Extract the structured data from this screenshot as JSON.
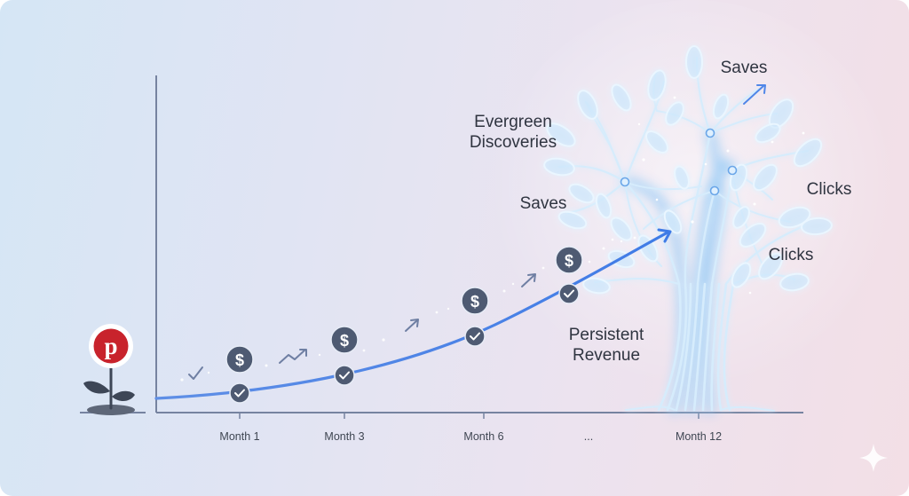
{
  "x_axis": {
    "ticks": [
      "Month 1",
      "Month 3",
      "Month 6",
      "...",
      "Month 12"
    ]
  },
  "milestones": [
    {
      "tick": "Month 1",
      "revenue_icon": "dollar-coin-icon",
      "status_icon": "check-icon"
    },
    {
      "tick": "Month 3",
      "revenue_icon": "dollar-coin-icon",
      "status_icon": "check-icon"
    },
    {
      "tick": "Month 6",
      "revenue_icon": "dollar-coin-icon",
      "status_icon": "check-icon"
    },
    {
      "tick": "...",
      "revenue_icon": "dollar-coin-icon",
      "status_icon": "check-icon"
    }
  ],
  "tree": {
    "labels": {
      "evergreen_line1": "Evergreen",
      "evergreen_line2": "Discoveries",
      "saves_top": "Saves",
      "saves_left": "Saves",
      "clicks_upper": "Clicks",
      "clicks_lower": "Clicks",
      "persistent_line1": "Persistent",
      "persistent_line2": "Revenue"
    }
  },
  "symbols": {
    "dollar": "$",
    "brand_letter": "p"
  },
  "icons": [
    "pinterest-logo-icon",
    "sprout-icon",
    "dollar-coin-icon",
    "check-icon",
    "trend-up-icon",
    "sparkle-icon"
  ],
  "colors": {
    "axis": "#7683a0",
    "curve": "#4f86e8",
    "coin": "#4e5a72",
    "tree_glow": "#8ec8f6",
    "tree_stroke": "#eaf6ff",
    "brand_red": "#c8232c"
  }
}
